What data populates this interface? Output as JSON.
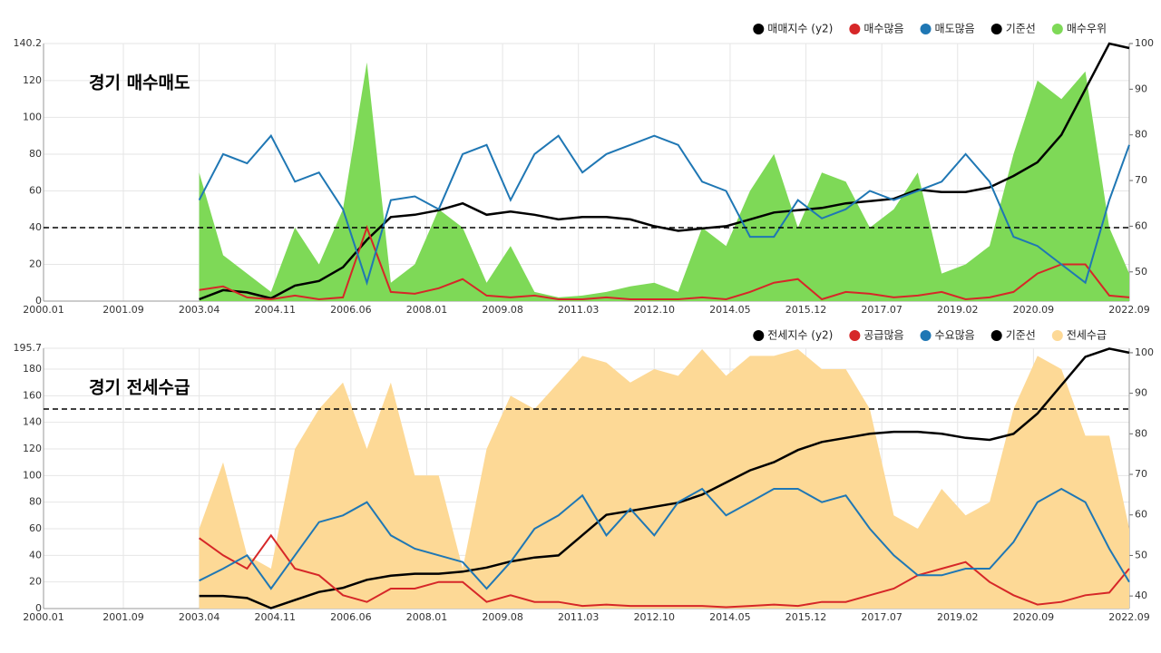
{
  "chart_data": [
    {
      "type": "line",
      "title": "경기 매수매도",
      "x": [
        "2003.04",
        "2003.10",
        "2004.04",
        "2004.10",
        "2005.04",
        "2005.10",
        "2006.04",
        "2006.10",
        "2007.04",
        "2007.10",
        "2008.04",
        "2008.10",
        "2009.04",
        "2009.10",
        "2010.04",
        "2010.10",
        "2011.04",
        "2011.10",
        "2012.04",
        "2012.10",
        "2013.04",
        "2013.10",
        "2014.04",
        "2014.10",
        "2015.04",
        "2015.10",
        "2016.04",
        "2016.10",
        "2017.04",
        "2017.10",
        "2018.04",
        "2018.10",
        "2019.04",
        "2019.10",
        "2020.04",
        "2020.10",
        "2021.04",
        "2021.10",
        "2022.04",
        "2022.09"
      ],
      "xlim": [
        "2000.01",
        "2022.09"
      ],
      "xticks": [
        "2000.01",
        "2001.09",
        "2003.04",
        "2004.11",
        "2006.06",
        "2008.01",
        "2009.08",
        "2011.03",
        "2012.10",
        "2014.05",
        "2015.12",
        "2017.07",
        "2019.02",
        "2020.09",
        "2022.09"
      ],
      "ylim": [
        0,
        140.2
      ],
      "yticks": [
        0,
        20,
        40,
        60,
        80,
        100,
        120,
        140.2
      ],
      "y2lim": [
        43.6,
        100
      ],
      "y2ticks": [
        50,
        60,
        70,
        80,
        90,
        100
      ],
      "grid": true,
      "legend": "top-right",
      "series": [
        {
          "name": "매매지수 (y2)",
          "color": "#000000",
          "axis": "y2",
          "style": "line",
          "values": [
            44,
            46,
            45.5,
            44.2,
            47,
            48,
            51,
            57,
            62,
            62.5,
            63.5,
            65,
            62.5,
            63.2,
            62.5,
            61.5,
            62,
            62,
            61.5,
            60,
            59,
            59.5,
            60,
            61.5,
            63,
            63.5,
            64,
            65,
            65.5,
            66,
            68,
            67.5,
            67.5,
            68.5,
            71,
            74,
            80,
            90,
            100,
            99
          ]
        },
        {
          "name": "매수많음",
          "color": "#d62728",
          "style": "line",
          "values": [
            6,
            8,
            2,
            1,
            3,
            1,
            2,
            40,
            5,
            4,
            7,
            12,
            3,
            2,
            3,
            1,
            1,
            2,
            1,
            1,
            1,
            2,
            1,
            5,
            10,
            12,
            1,
            5,
            4,
            2,
            3,
            5,
            1,
            2,
            5,
            15,
            20,
            20,
            3,
            2
          ]
        },
        {
          "name": "매도많음",
          "color": "#1f77b4",
          "style": "line",
          "values": [
            55,
            80,
            75,
            90,
            65,
            70,
            50,
            10,
            55,
            57,
            50,
            80,
            85,
            55,
            80,
            90,
            70,
            80,
            85,
            90,
            85,
            65,
            60,
            35,
            35,
            55,
            45,
            50,
            60,
            55,
            60,
            65,
            80,
            65,
            35,
            30,
            20,
            10,
            55,
            85
          ]
        },
        {
          "name": "기준선",
          "color": "#000000",
          "style": "dashed",
          "value": 40
        },
        {
          "name": "매수우위",
          "color": "#7ed957",
          "style": "area",
          "values": [
            70,
            25,
            15,
            5,
            40,
            20,
            50,
            130,
            10,
            20,
            50,
            40,
            10,
            30,
            5,
            2,
            3,
            5,
            8,
            10,
            5,
            40,
            30,
            60,
            80,
            40,
            70,
            65,
            40,
            50,
            70,
            15,
            20,
            30,
            80,
            120,
            110,
            125,
            40,
            15
          ]
        }
      ]
    },
    {
      "type": "line",
      "title": "경기 전세수급",
      "x": [
        "2003.04",
        "2003.10",
        "2004.04",
        "2004.10",
        "2005.04",
        "2005.10",
        "2006.04",
        "2006.10",
        "2007.04",
        "2007.10",
        "2008.04",
        "2008.10",
        "2009.04",
        "2009.10",
        "2010.04",
        "2010.10",
        "2011.04",
        "2011.10",
        "2012.04",
        "2012.10",
        "2013.04",
        "2013.10",
        "2014.04",
        "2014.10",
        "2015.04",
        "2015.10",
        "2016.04",
        "2016.10",
        "2017.04",
        "2017.10",
        "2018.04",
        "2018.10",
        "2019.04",
        "2019.10",
        "2020.04",
        "2020.10",
        "2021.04",
        "2021.10",
        "2022.04",
        "2022.09"
      ],
      "xlim": [
        "2000.01",
        "2022.09"
      ],
      "xticks": [
        "2000.01",
        "2001.09",
        "2003.04",
        "2004.11",
        "2006.06",
        "2008.01",
        "2009.08",
        "2011.03",
        "2012.10",
        "2014.05",
        "2015.12",
        "2017.07",
        "2019.02",
        "2020.09",
        "2022.09"
      ],
      "ylim": [
        0,
        195.7
      ],
      "yticks": [
        0,
        20,
        40,
        60,
        80,
        100,
        120,
        140,
        160,
        180,
        195.7
      ],
      "y2lim": [
        36.9,
        101.1
      ],
      "y2ticks": [
        40,
        50,
        60,
        70,
        80,
        90,
        100
      ],
      "grid": true,
      "legend": "top-right",
      "series": [
        {
          "name": "전세지수 (y2)",
          "color": "#000000",
          "axis": "y2",
          "style": "line",
          "values": [
            40,
            40,
            39.5,
            37,
            39,
            41,
            42,
            44,
            45,
            45.5,
            45.5,
            46,
            47,
            48.5,
            49.5,
            50,
            55,
            60,
            61,
            62,
            63,
            65,
            68,
            71,
            73,
            76,
            78,
            79,
            80,
            80.5,
            80.5,
            80,
            79,
            78.5,
            80,
            85,
            92,
            99,
            101,
            100
          ]
        },
        {
          "name": "공급많음",
          "color": "#d62728",
          "style": "line",
          "values": [
            53,
            40,
            30,
            55,
            30,
            25,
            10,
            5,
            15,
            15,
            20,
            20,
            5,
            10,
            5,
            5,
            2,
            3,
            2,
            2,
            2,
            2,
            1,
            2,
            3,
            2,
            5,
            5,
            10,
            15,
            25,
            30,
            35,
            20,
            10,
            3,
            5,
            10,
            12,
            30
          ]
        },
        {
          "name": "수요많음",
          "color": "#1f77b4",
          "style": "line",
          "values": [
            21,
            30,
            40,
            15,
            40,
            65,
            70,
            80,
            55,
            45,
            40,
            35,
            15,
            35,
            60,
            70,
            85,
            55,
            75,
            55,
            80,
            90,
            70,
            80,
            90,
            90,
            80,
            85,
            60,
            40,
            25,
            25,
            30,
            30,
            50,
            80,
            90,
            80,
            45,
            20
          ]
        },
        {
          "name": "기준선",
          "color": "#000000",
          "style": "dashed",
          "value": 150
        },
        {
          "name": "전세수급",
          "color": "#fdd996",
          "style": "area",
          "values": [
            60,
            110,
            40,
            30,
            120,
            150,
            170,
            120,
            170,
            100,
            100,
            30,
            120,
            160,
            150,
            170,
            190,
            185,
            170,
            180,
            175,
            195,
            175,
            190,
            190,
            195,
            180,
            180,
            150,
            70,
            60,
            90,
            70,
            80,
            150,
            190,
            180,
            130,
            130,
            60
          ]
        }
      ]
    }
  ]
}
